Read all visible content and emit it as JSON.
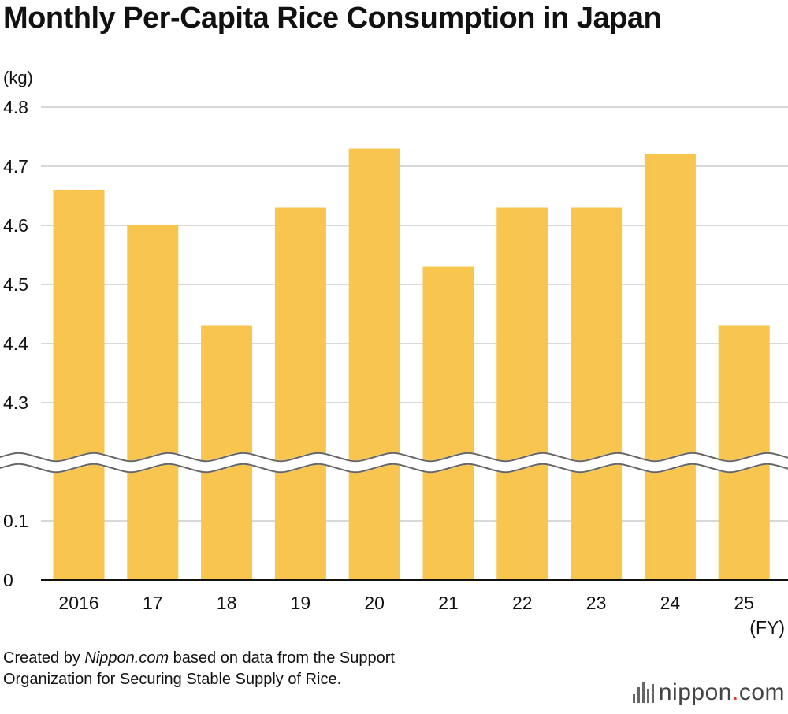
{
  "title": "Monthly Per-Capita Rice Consumption in Japan",
  "footer": {
    "created_by": "Created by ",
    "site": "Nippon.com",
    "text_rest": " based on data from the Support",
    "line2": "Organization for Securing Stable Supply of Rice."
  },
  "brand": {
    "name_a": "nippon",
    "dot": ".",
    "name_b": "com",
    "icon": "barcode-logo-icon"
  },
  "colors": {
    "bar": "#F8C54E",
    "grid": "#cccccc",
    "break_line": "#666666"
  },
  "chart_data": {
    "type": "bar",
    "title": "Monthly Per-Capita Rice Consumption in Japan",
    "ylabel": "(kg)",
    "xlabel": "(FY)",
    "categories": [
      "2016",
      "17",
      "18",
      "19",
      "20",
      "21",
      "22",
      "23",
      "24",
      "25"
    ],
    "values": [
      4.66,
      4.6,
      4.43,
      4.63,
      4.73,
      4.53,
      4.63,
      4.63,
      4.72,
      4.43
    ],
    "y_ticks_upper": [
      "4.8",
      "4.7",
      "4.6",
      "4.5",
      "4.4",
      "4.3"
    ],
    "y_ticks_lower": [
      "0.1",
      "0"
    ],
    "ylim_upper": [
      4.3,
      4.8
    ],
    "ylim_lower": [
      0,
      0.1
    ],
    "axis_break": true,
    "grid": true
  }
}
